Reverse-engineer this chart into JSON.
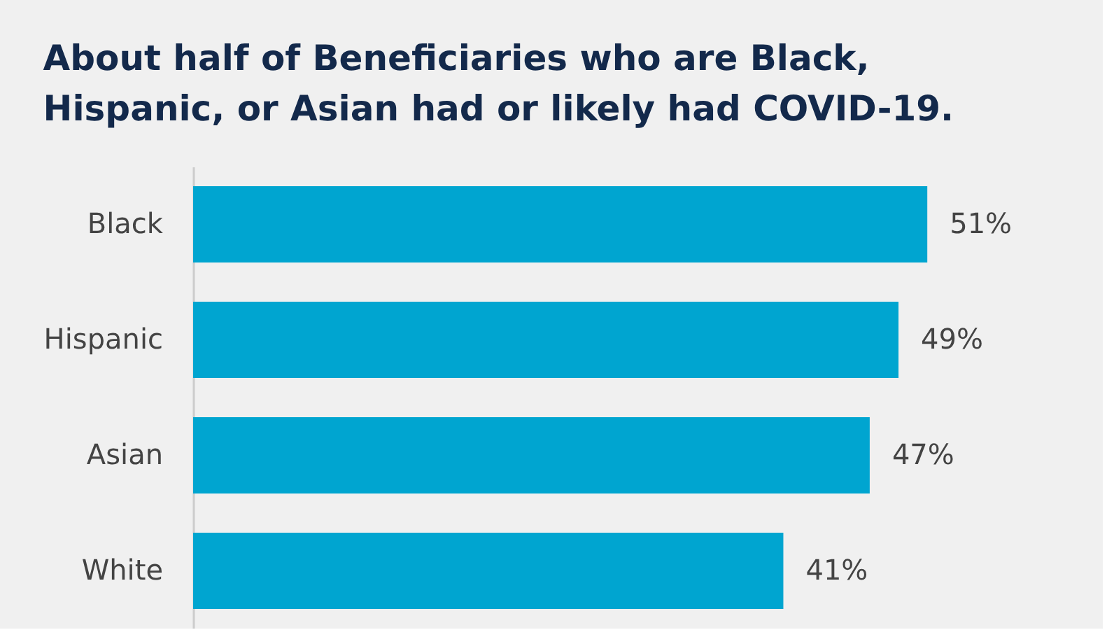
{
  "chart_data": {
    "type": "bar",
    "orientation": "horizontal",
    "title": "About half of Beneficiaries who are Black,\nHispanic, or Asian had or likely had COVID-19.",
    "categories": [
      "Black",
      "Hispanic",
      "Asian",
      "White"
    ],
    "values": [
      51,
      49,
      47,
      41
    ],
    "value_labels": [
      "51%",
      "49%",
      "47%",
      "41%"
    ],
    "color": "#00a5d0",
    "grid": false
  }
}
